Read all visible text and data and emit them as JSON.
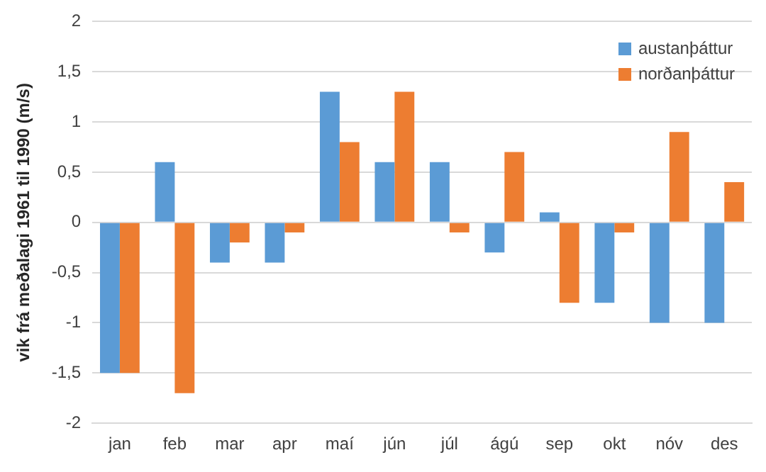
{
  "chart_data": {
    "type": "bar",
    "ylabel": "vik frá meðalagi 1961 til 1990 (m/s)",
    "categories": [
      "jan",
      "feb",
      "mar",
      "apr",
      "maí",
      "jún",
      "júl",
      "ágú",
      "sep",
      "okt",
      "nóv",
      "des"
    ],
    "series": [
      {
        "name": "austanþáttur",
        "color": "#5b9bd5",
        "values": [
          -1.5,
          0.6,
          -0.4,
          -0.4,
          1.3,
          0.6,
          0.6,
          -0.3,
          0.1,
          -0.8,
          -1.0,
          -1.0
        ]
      },
      {
        "name": "norðanþáttur",
        "color": "#ed7d31",
        "values": [
          -1.5,
          -1.7,
          -0.2,
          -0.1,
          0.8,
          1.3,
          -0.1,
          0.7,
          -0.8,
          -0.1,
          0.9,
          0.4
        ]
      }
    ],
    "ylim": [
      -2,
      2
    ],
    "yticks": [
      {
        "value": -2,
        "label": "-2"
      },
      {
        "value": -1.5,
        "label": "-1,5"
      },
      {
        "value": -1,
        "label": "-1"
      },
      {
        "value": -0.5,
        "label": "-0,5"
      },
      {
        "value": 0,
        "label": "0"
      },
      {
        "value": 0.5,
        "label": "0,5"
      },
      {
        "value": 1,
        "label": "1"
      },
      {
        "value": 1.5,
        "label": "1,5"
      },
      {
        "value": 2,
        "label": "2"
      }
    ],
    "grid": "y",
    "legend": "top right"
  }
}
